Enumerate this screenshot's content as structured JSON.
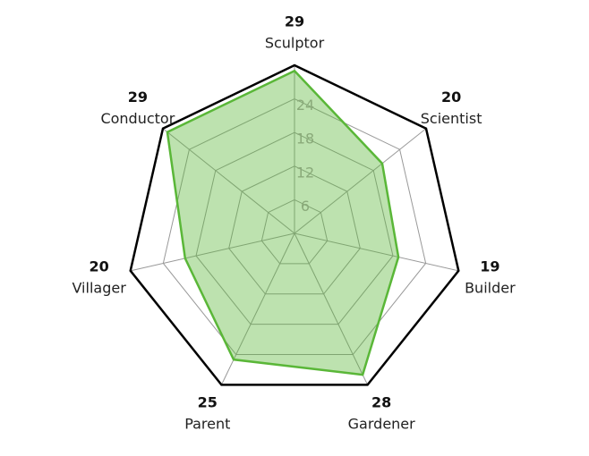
{
  "chart_data": {
    "type": "radar",
    "categories": [
      "Sculptor",
      "Scientist",
      "Builder",
      "Gardener",
      "Parent",
      "Villager",
      "Conductor"
    ],
    "values": [
      29,
      20,
      19,
      28,
      25,
      20,
      29
    ],
    "color": "#5ab738",
    "ylim": [
      0,
      30
    ],
    "yticks": [
      6,
      12,
      18,
      24
    ]
  }
}
